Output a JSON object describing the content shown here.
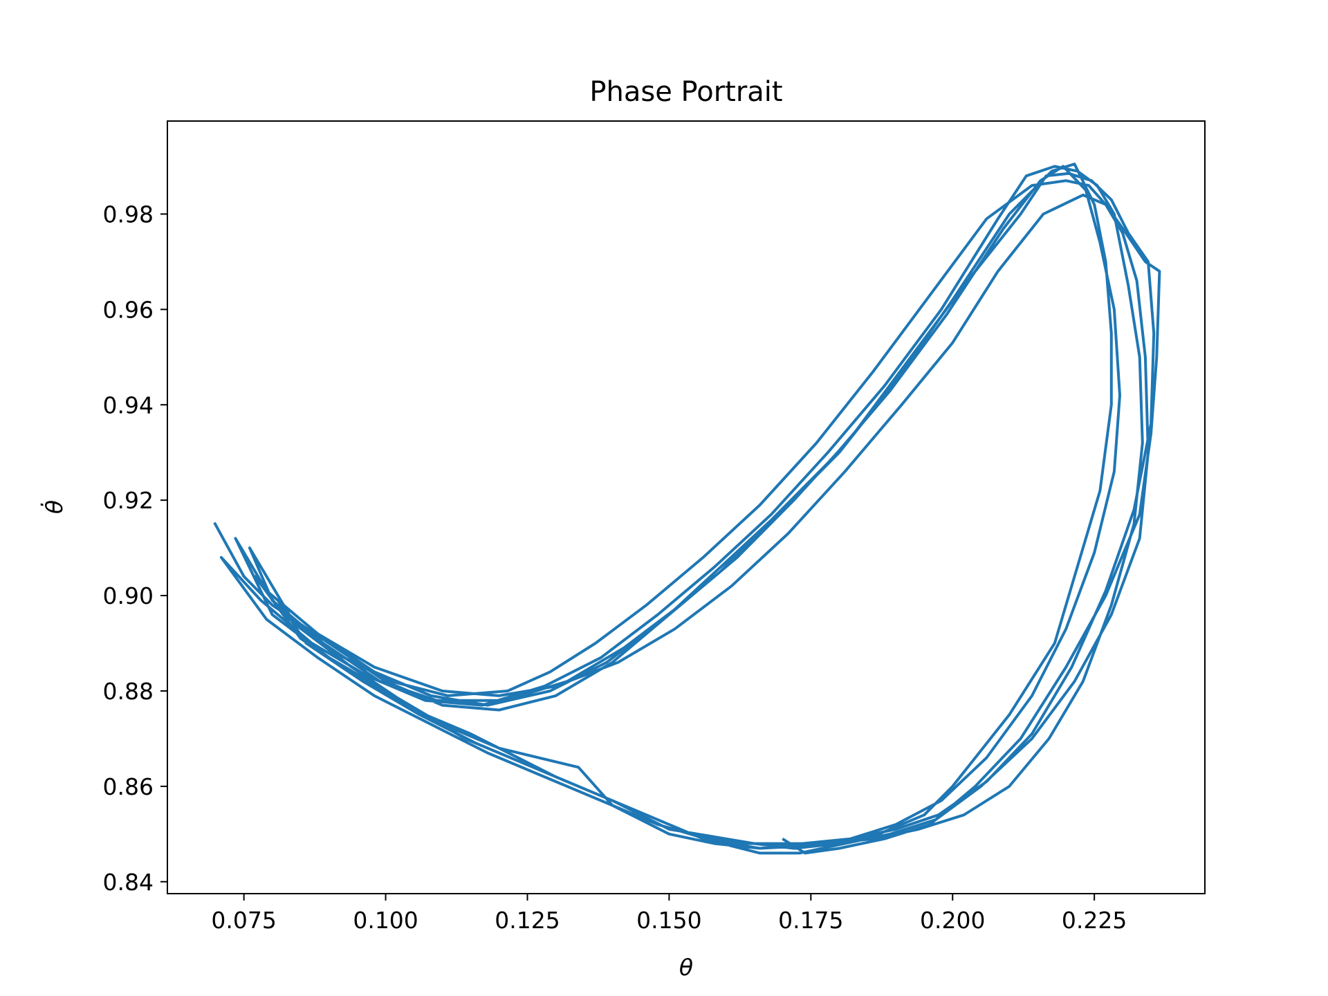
{
  "chart_data": {
    "type": "line",
    "title": "Phase Portrait",
    "xlabel": "θ",
    "ylabel": "θ̇",
    "xlim": [
      0.0615,
      0.2445
    ],
    "ylim": [
      0.8375,
      0.9995
    ],
    "xticks": [
      0.075,
      0.1,
      0.125,
      0.15,
      0.175,
      0.2,
      0.225
    ],
    "xtick_labels": [
      "0.075",
      "0.100",
      "0.125",
      "0.150",
      "0.175",
      "0.200",
      "0.225"
    ],
    "yticks": [
      0.84,
      0.86,
      0.88,
      0.9,
      0.92,
      0.94,
      0.96,
      0.98
    ],
    "ytick_labels": [
      "0.84",
      "0.86",
      "0.88",
      "0.90",
      "0.92",
      "0.94",
      "0.96",
      "0.98"
    ],
    "grid": false,
    "legend": "none",
    "series": [
      {
        "color": "#1f77b4",
        "x": [
          0.0698,
          0.075,
          0.08,
          0.09,
          0.1,
          0.11,
          0.12,
          0.13,
          0.14,
          0.15,
          0.16,
          0.17,
          0.18,
          0.19,
          0.2,
          0.21,
          0.2175,
          0.2215,
          0.225,
          0.227,
          0.228,
          0.228,
          0.226,
          0.222,
          0.218,
          0.21,
          0.2,
          0.195,
          0.187,
          0.18,
          0.172,
          0.165,
          0.16,
          0.15,
          0.14,
          0.13,
          0.12,
          0.11,
          0.1,
          0.09,
          0.08,
          0.0735,
          0.079,
          0.088,
          0.098,
          0.108,
          0.118,
          0.129,
          0.139,
          0.149,
          0.159,
          0.169,
          0.179,
          0.189,
          0.199,
          0.209,
          0.2155,
          0.2195,
          0.2235,
          0.226,
          0.2285,
          0.2295,
          0.2285,
          0.225,
          0.22,
          0.214,
          0.206,
          0.198,
          0.19,
          0.182,
          0.174,
          0.166,
          0.158,
          0.148,
          0.138,
          0.128,
          0.118,
          0.108,
          0.098,
          0.088,
          0.079,
          0.071,
          0.078,
          0.087,
          0.097,
          0.107,
          0.117,
          0.128,
          0.138,
          0.148,
          0.158,
          0.168,
          0.178,
          0.188,
          0.198,
          0.208,
          0.213,
          0.218,
          0.222,
          0.2255,
          0.2285,
          0.231,
          0.233,
          0.2335,
          0.232,
          0.228,
          0.223,
          0.217,
          0.21,
          0.202,
          0.194,
          0.186,
          0.178,
          0.17,
          0.162,
          0.154,
          0.144,
          0.134,
          0.124,
          0.114,
          0.104,
          0.094,
          0.084,
          0.076,
          0.08,
          0.089,
          0.099,
          0.109,
          0.121,
          0.132,
          0.142,
          0.152,
          0.162,
          0.172,
          0.182,
          0.192,
          0.202,
          0.212,
          0.2165,
          0.2205,
          0.2245,
          0.228,
          0.231,
          0.2345,
          0.2355,
          0.235,
          0.232,
          0.227,
          0.221,
          0.214,
          0.206,
          0.1975,
          0.19,
          0.182,
          0.1735,
          0.166,
          0.158,
          0.15,
          0.14,
          0.134,
          0.12,
          0.115,
          0.105,
          0.095,
          0.085,
          0.077,
          0.082,
          0.091,
          0.101,
          0.111,
          0.1215,
          0.129,
          0.137,
          0.146,
          0.156,
          0.166,
          0.176,
          0.186,
          0.196,
          0.206,
          0.214,
          0.22,
          0.224,
          0.227,
          0.23,
          0.2325,
          0.234,
          0.2345,
          0.233,
          0.228,
          0.2215,
          0.214,
          0.205,
          0.197,
          0.189,
          0.181,
          0.173,
          0.166,
          0.156,
          0.146,
          0.136,
          0.126,
          0.116,
          0.106,
          0.096,
          0.086,
          0.081,
          0.088,
          0.098,
          0.11,
          0.12,
          0.13,
          0.141,
          0.151,
          0.161,
          0.171,
          0.181,
          0.191,
          0.2,
          0.208,
          0.216,
          0.223,
          0.227,
          0.23,
          0.234,
          0.2365,
          0.236,
          0.235,
          0.233,
          0.227,
          0.22,
          0.212,
          0.204,
          0.196,
          0.188,
          0.18,
          0.174,
          0.17
        ],
        "y": [
          0.9153,
          0.904,
          0.898,
          0.89,
          0.882,
          0.877,
          0.876,
          0.879,
          0.886,
          0.896,
          0.907,
          0.918,
          0.93,
          0.945,
          0.962,
          0.98,
          0.989,
          0.9905,
          0.982,
          0.97,
          0.955,
          0.94,
          0.922,
          0.906,
          0.89,
          0.875,
          0.86,
          0.854,
          0.85,
          0.848,
          0.847,
          0.848,
          0.849,
          0.851,
          0.857,
          0.862,
          0.868,
          0.873,
          0.88,
          0.887,
          0.896,
          0.912,
          0.901,
          0.892,
          0.884,
          0.879,
          0.877,
          0.88,
          0.886,
          0.895,
          0.905,
          0.917,
          0.929,
          0.943,
          0.959,
          0.977,
          0.987,
          0.99,
          0.985,
          0.974,
          0.96,
          0.942,
          0.926,
          0.909,
          0.893,
          0.879,
          0.866,
          0.857,
          0.852,
          0.849,
          0.8475,
          0.847,
          0.8485,
          0.852,
          0.857,
          0.862,
          0.867,
          0.873,
          0.879,
          0.887,
          0.895,
          0.908,
          0.899,
          0.89,
          0.883,
          0.878,
          0.877,
          0.881,
          0.887,
          0.896,
          0.906,
          0.917,
          0.93,
          0.944,
          0.96,
          0.979,
          0.988,
          0.99,
          0.989,
          0.986,
          0.98,
          0.965,
          0.95,
          0.932,
          0.915,
          0.898,
          0.882,
          0.87,
          0.86,
          0.854,
          0.851,
          0.849,
          0.848,
          0.848,
          0.848,
          0.85,
          0.855,
          0.86,
          0.865,
          0.87,
          0.877,
          0.885,
          0.894,
          0.91,
          0.899,
          0.89,
          0.882,
          0.878,
          0.878,
          0.882,
          0.889,
          0.898,
          0.908,
          0.92,
          0.933,
          0.949,
          0.965,
          0.98,
          0.988,
          0.9885,
          0.987,
          0.983,
          0.976,
          0.97,
          0.955,
          0.936,
          0.918,
          0.901,
          0.885,
          0.871,
          0.861,
          0.854,
          0.851,
          0.849,
          0.848,
          0.847,
          0.848,
          0.85,
          0.856,
          0.864,
          0.868,
          0.871,
          0.876,
          0.883,
          0.891,
          0.904,
          0.896,
          0.888,
          0.882,
          0.879,
          0.88,
          0.884,
          0.89,
          0.898,
          0.908,
          0.919,
          0.932,
          0.947,
          0.963,
          0.979,
          0.986,
          0.987,
          0.986,
          0.982,
          0.976,
          0.966,
          0.95,
          0.93,
          0.912,
          0.896,
          0.882,
          0.87,
          0.86,
          0.853,
          0.85,
          0.848,
          0.846,
          0.846,
          0.849,
          0.854,
          0.859,
          0.864,
          0.869,
          0.875,
          0.882,
          0.89,
          0.899,
          0.892,
          0.885,
          0.88,
          0.879,
          0.881,
          0.886,
          0.893,
          0.902,
          0.913,
          0.926,
          0.94,
          0.953,
          0.968,
          0.98,
          0.984,
          0.982,
          0.977,
          0.97,
          0.968,
          0.95,
          0.934,
          0.917,
          0.9,
          0.885,
          0.87,
          0.86,
          0.852,
          0.849,
          0.847,
          0.846,
          0.849
        ]
      }
    ]
  }
}
